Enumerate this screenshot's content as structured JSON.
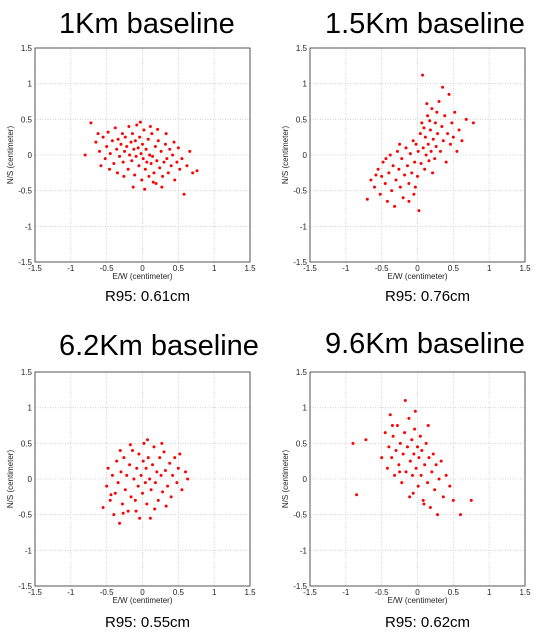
{
  "chart_data": [
    {
      "type": "scatter",
      "title": "1Km baseline",
      "caption": "R95: 0.61cm",
      "xlabel": "E/W (centimeter)",
      "ylabel": "N/S (centimeter)",
      "xlim": [
        -1.5,
        1.5
      ],
      "ylim": [
        -1.5,
        1.5
      ],
      "xticks": [
        "-1.5",
        "-1",
        "-0.5",
        "0",
        "0.5",
        "1",
        "1.5"
      ],
      "yticks": [
        "-1.5",
        "-1",
        "-0.5",
        "0",
        "0.5",
        "1",
        "1.5"
      ],
      "grid": true,
      "color": "#ff0000",
      "points": [
        [
          -0.8,
          0.0
        ],
        [
          -0.72,
          0.45
        ],
        [
          -0.65,
          0.18
        ],
        [
          -0.6,
          0.05
        ],
        [
          -0.55,
          0.25
        ],
        [
          -0.52,
          -0.05
        ],
        [
          -0.5,
          0.12
        ],
        [
          -0.48,
          0.32
        ],
        [
          -0.45,
          0.02
        ],
        [
          -0.42,
          0.2
        ],
        [
          -0.4,
          -0.12
        ],
        [
          -0.38,
          0.38
        ],
        [
          -0.36,
          0.08
        ],
        [
          -0.34,
          0.22
        ],
        [
          -0.32,
          -0.02
        ],
        [
          -0.3,
          0.15
        ],
        [
          -0.28,
          0.3
        ],
        [
          -0.27,
          -0.1
        ],
        [
          -0.25,
          0.05
        ],
        [
          -0.24,
          0.25
        ],
        [
          -0.22,
          0.12
        ],
        [
          -0.2,
          -0.2
        ],
        [
          -0.19,
          0.4
        ],
        [
          -0.18,
          0.0
        ],
        [
          -0.16,
          0.18
        ],
        [
          -0.15,
          -0.08
        ],
        [
          -0.14,
          0.3
        ],
        [
          -0.12,
          0.08
        ],
        [
          -0.11,
          -0.28
        ],
        [
          -0.1,
          0.2
        ],
        [
          -0.09,
          -0.02
        ],
        [
          -0.08,
          0.42
        ],
        [
          -0.06,
          0.1
        ],
        [
          -0.05,
          -0.15
        ],
        [
          -0.04,
          0.25
        ],
        [
          -0.02,
          0.02
        ],
        [
          -0.01,
          -0.35
        ],
        [
          0.0,
          0.15
        ],
        [
          0.01,
          -0.05
        ],
        [
          0.02,
          0.35
        ],
        [
          0.04,
          -0.2
        ],
        [
          0.05,
          0.08
        ],
        [
          0.06,
          -0.1
        ],
        [
          0.08,
          0.22
        ],
        [
          0.09,
          -0.3
        ],
        [
          0.1,
          0.0
        ],
        [
          0.12,
          -0.12
        ],
        [
          0.13,
          0.3
        ],
        [
          0.14,
          -0.02
        ],
        [
          0.16,
          -0.25
        ],
        [
          0.18,
          0.12
        ],
        [
          0.19,
          -0.4
        ],
        [
          0.2,
          -0.08
        ],
        [
          0.22,
          0.2
        ],
        [
          0.24,
          -0.18
        ],
        [
          0.26,
          0.05
        ],
        [
          0.28,
          -0.3
        ],
        [
          0.3,
          -0.1
        ],
        [
          0.32,
          0.15
        ],
        [
          0.34,
          -0.05
        ],
        [
          0.36,
          -0.25
        ],
        [
          0.38,
          0.08
        ],
        [
          0.4,
          -0.15
        ],
        [
          0.42,
          0.0
        ],
        [
          0.45,
          -0.35
        ],
        [
          0.48,
          -0.1
        ],
        [
          0.5,
          0.1
        ],
        [
          0.52,
          -0.2
        ],
        [
          0.55,
          -0.05
        ],
        [
          0.58,
          -0.55
        ],
        [
          0.62,
          -0.15
        ],
        [
          0.66,
          0.05
        ],
        [
          0.7,
          -0.25
        ],
        [
          0.76,
          -0.22
        ],
        [
          -0.58,
          -0.15
        ],
        [
          -0.46,
          -0.2
        ],
        [
          -0.35,
          -0.25
        ],
        [
          -0.26,
          -0.3
        ],
        [
          -0.13,
          -0.45
        ],
        [
          0.03,
          -0.48
        ],
        [
          0.15,
          -0.38
        ],
        [
          0.27,
          -0.45
        ],
        [
          0.33,
          0.3
        ],
        [
          0.21,
          0.36
        ],
        [
          0.11,
          0.4
        ],
        [
          -0.03,
          0.46
        ],
        [
          0.44,
          0.18
        ],
        [
          -0.62,
          0.3
        ]
      ]
    },
    {
      "type": "scatter",
      "title": "1.5Km baseline",
      "caption": "R95: 0.76cm",
      "xlabel": "E/W (centimeter)",
      "ylabel": "N/S (centimeter)",
      "xlim": [
        -1.5,
        1.5
      ],
      "ylim": [
        -1.5,
        1.5
      ],
      "xticks": [
        "-1.5",
        "-1",
        "-0.5",
        "0",
        "0.5",
        "1",
        "1.5"
      ],
      "yticks": [
        "-1.5",
        "-1",
        "-0.5",
        "0",
        "0.5",
        "1",
        "1.5"
      ],
      "grid": true,
      "color": "#ff0000",
      "points": [
        [
          -0.7,
          -0.62
        ],
        [
          -0.65,
          -0.35
        ],
        [
          -0.6,
          -0.45
        ],
        [
          -0.55,
          -0.2
        ],
        [
          -0.52,
          -0.55
        ],
        [
          -0.5,
          -0.3
        ],
        [
          -0.48,
          -0.1
        ],
        [
          -0.45,
          -0.4
        ],
        [
          -0.42,
          -0.65
        ],
        [
          -0.4,
          -0.25
        ],
        [
          -0.38,
          0.0
        ],
        [
          -0.36,
          -0.5
        ],
        [
          -0.34,
          -0.15
        ],
        [
          -0.32,
          -0.72
        ],
        [
          -0.3,
          -0.35
        ],
        [
          -0.28,
          0.05
        ],
        [
          -0.26,
          -0.2
        ],
        [
          -0.24,
          -0.45
        ],
        [
          -0.22,
          -0.05
        ],
        [
          -0.2,
          -0.6
        ],
        [
          -0.18,
          -0.28
        ],
        [
          -0.16,
          0.1
        ],
        [
          -0.14,
          -0.15
        ],
        [
          -0.12,
          -0.4
        ],
        [
          -0.1,
          0.02
        ],
        [
          -0.08,
          -0.25
        ],
        [
          -0.06,
          0.2
        ],
        [
          -0.05,
          -0.55
        ],
        [
          -0.04,
          -0.1
        ],
        [
          -0.02,
          0.15
        ],
        [
          0.0,
          -0.3
        ],
        [
          0.01,
          0.05
        ],
        [
          0.02,
          -0.78
        ],
        [
          0.04,
          0.3
        ],
        [
          0.05,
          -0.12
        ],
        [
          0.06,
          0.45
        ],
        [
          0.08,
          0.1
        ],
        [
          0.1,
          -0.2
        ],
        [
          0.11,
          0.25
        ],
        [
          0.12,
          0.0
        ],
        [
          0.14,
          0.55
        ],
        [
          0.15,
          0.15
        ],
        [
          0.16,
          -0.08
        ],
        [
          0.18,
          0.35
        ],
        [
          0.19,
          0.05
        ],
        [
          0.2,
          0.65
        ],
        [
          0.22,
          0.22
        ],
        [
          0.24,
          -0.05
        ],
        [
          0.25,
          0.45
        ],
        [
          0.26,
          0.12
        ],
        [
          0.28,
          0.3
        ],
        [
          0.3,
          0.75
        ],
        [
          0.32,
          0.05
        ],
        [
          0.34,
          0.4
        ],
        [
          0.36,
          0.2
        ],
        [
          0.38,
          0.55
        ],
        [
          0.4,
          -0.1
        ],
        [
          0.42,
          0.3
        ],
        [
          0.44,
          0.85
        ],
        [
          0.46,
          0.15
        ],
        [
          0.48,
          0.45
        ],
        [
          0.5,
          0.25
        ],
        [
          0.52,
          0.6
        ],
        [
          0.55,
          0.05
        ],
        [
          0.58,
          0.35
        ],
        [
          0.62,
          0.2
        ],
        [
          0.68,
          0.5
        ],
        [
          0.78,
          0.45
        ],
        [
          0.07,
          1.12
        ],
        [
          -0.12,
          -0.65
        ],
        [
          -0.25,
          0.15
        ],
        [
          0.13,
          0.72
        ],
        [
          -0.44,
          -0.05
        ],
        [
          0.21,
          -0.25
        ],
        [
          0.35,
          0.95
        ],
        [
          -0.58,
          -0.28
        ],
        [
          0.27,
          0.6
        ],
        [
          0.09,
          0.38
        ],
        [
          -0.03,
          -0.45
        ],
        [
          0.17,
          0.48
        ]
      ]
    },
    {
      "type": "scatter",
      "title": "6.2Km baseline",
      "caption": "R95: 0.55cm",
      "xlabel": "E/W (centimeter)",
      "ylabel": "N/S (centimeter)",
      "xlim": [
        -1.5,
        1.5
      ],
      "ylim": [
        -1.5,
        1.5
      ],
      "xticks": [
        "-1.5",
        "-1",
        "-0.5",
        "0",
        "0.5",
        "1",
        "1.5"
      ],
      "yticks": [
        "-1.5",
        "-1",
        "-0.5",
        "0",
        "0.5",
        "1",
        "1.5"
      ],
      "grid": true,
      "color": "#ff0000",
      "points": [
        [
          -0.55,
          -0.4
        ],
        [
          -0.5,
          -0.1
        ],
        [
          -0.48,
          0.15
        ],
        [
          -0.45,
          -0.3
        ],
        [
          -0.42,
          0.05
        ],
        [
          -0.4,
          -0.5
        ],
        [
          -0.38,
          -0.2
        ],
        [
          -0.36,
          0.25
        ],
        [
          -0.34,
          -0.05
        ],
        [
          -0.32,
          -0.62
        ],
        [
          -0.3,
          0.1
        ],
        [
          -0.28,
          -0.35
        ],
        [
          -0.26,
          0.3
        ],
        [
          -0.24,
          -0.15
        ],
        [
          -0.22,
          0.05
        ],
        [
          -0.2,
          -0.45
        ],
        [
          -0.18,
          0.2
        ],
        [
          -0.16,
          -0.25
        ],
        [
          -0.14,
          0.4
        ],
        [
          -0.12,
          0.0
        ],
        [
          -0.1,
          -0.3
        ],
        [
          -0.08,
          0.15
        ],
        [
          -0.06,
          -0.1
        ],
        [
          -0.05,
          0.35
        ],
        [
          -0.04,
          -0.55
        ],
        [
          -0.02,
          0.05
        ],
        [
          0.0,
          -0.2
        ],
        [
          0.01,
          0.25
        ],
        [
          0.02,
          0.5
        ],
        [
          0.04,
          -0.05
        ],
        [
          0.05,
          0.15
        ],
        [
          0.06,
          -0.35
        ],
        [
          0.08,
          0.3
        ],
        [
          0.1,
          0.0
        ],
        [
          0.12,
          -0.15
        ],
        [
          0.14,
          0.2
        ],
        [
          0.16,
          0.45
        ],
        [
          0.18,
          -0.05
        ],
        [
          0.2,
          0.1
        ],
        [
          0.22,
          -0.3
        ],
        [
          0.24,
          0.3
        ],
        [
          0.26,
          0.05
        ],
        [
          0.28,
          -0.18
        ],
        [
          0.3,
          0.38
        ],
        [
          0.32,
          0.12
        ],
        [
          0.35,
          -0.1
        ],
        [
          0.38,
          0.22
        ],
        [
          0.4,
          -0.25
        ],
        [
          0.42,
          0.05
        ],
        [
          0.45,
          0.3
        ],
        [
          0.48,
          -0.05
        ],
        [
          0.5,
          0.15
        ],
        [
          0.55,
          -0.15
        ],
        [
          0.6,
          0.1
        ],
        [
          0.63,
          0.0
        ],
        [
          0.07,
          0.55
        ],
        [
          -0.17,
          0.48
        ],
        [
          0.27,
          0.5
        ],
        [
          -0.09,
          -0.45
        ],
        [
          0.17,
          -0.42
        ],
        [
          0.33,
          -0.38
        ],
        [
          -0.27,
          -0.48
        ],
        [
          -0.44,
          -0.22
        ],
        [
          0.52,
          0.35
        ],
        [
          0.11,
          -0.55
        ],
        [
          -0.31,
          0.4
        ]
      ]
    },
    {
      "type": "scatter",
      "title": "9.6Km baseline",
      "caption": "R95: 0.62cm",
      "xlabel": "E/W (centimeter)",
      "ylabel": "N/S (centimeter)",
      "xlim": [
        -1.5,
        1.5
      ],
      "ylim": [
        -1.5,
        1.5
      ],
      "xticks": [
        "-1.5",
        "-1",
        "-0.5",
        "0",
        "0.5",
        "1",
        "1.5"
      ],
      "yticks": [
        "-1.5",
        "-1",
        "-0.5",
        "0",
        "0.5",
        "1",
        "1.5"
      ],
      "grid": true,
      "color": "#ff0000",
      "points": [
        [
          -0.9,
          0.5
        ],
        [
          -0.85,
          -0.22
        ],
        [
          -0.72,
          0.55
        ],
        [
          -0.5,
          0.3
        ],
        [
          -0.45,
          0.65
        ],
        [
          -0.42,
          0.15
        ],
        [
          -0.4,
          0.45
        ],
        [
          -0.38,
          0.9
        ],
        [
          -0.36,
          0.3
        ],
        [
          -0.34,
          0.6
        ],
        [
          -0.32,
          0.05
        ],
        [
          -0.3,
          0.4
        ],
        [
          -0.28,
          0.75
        ],
        [
          -0.26,
          0.2
        ],
        [
          -0.24,
          0.5
        ],
        [
          -0.22,
          -0.05
        ],
        [
          -0.2,
          0.35
        ],
        [
          -0.18,
          0.65
        ],
        [
          -0.16,
          0.1
        ],
        [
          -0.14,
          0.45
        ],
        [
          -0.12,
          0.85
        ],
        [
          -0.1,
          0.25
        ],
        [
          -0.08,
          0.55
        ],
        [
          -0.06,
          -0.2
        ],
        [
          -0.05,
          0.35
        ],
        [
          -0.04,
          0.7
        ],
        [
          -0.02,
          0.15
        ],
        [
          0.0,
          0.45
        ],
        [
          0.01,
          -0.1
        ],
        [
          0.02,
          0.3
        ],
        [
          0.04,
          0.6
        ],
        [
          0.05,
          0.05
        ],
        [
          0.06,
          0.4
        ],
        [
          0.08,
          -0.3
        ],
        [
          0.1,
          0.2
        ],
        [
          0.12,
          0.5
        ],
        [
          0.14,
          -0.05
        ],
        [
          0.16,
          0.3
        ],
        [
          0.18,
          -0.4
        ],
        [
          0.2,
          0.1
        ],
        [
          0.22,
          0.35
        ],
        [
          0.24,
          -0.15
        ],
        [
          0.26,
          0.2
        ],
        [
          0.28,
          -0.5
        ],
        [
          0.3,
          0.0
        ],
        [
          0.33,
          0.25
        ],
        [
          0.36,
          -0.25
        ],
        [
          0.4,
          0.05
        ],
        [
          0.45,
          -0.1
        ],
        [
          0.5,
          -0.3
        ],
        [
          0.6,
          -0.5
        ],
        [
          0.75,
          -0.3
        ],
        [
          -0.17,
          1.1
        ],
        [
          -0.03,
          0.95
        ],
        [
          -0.11,
          -0.25
        ],
        [
          0.09,
          -0.35
        ],
        [
          -0.25,
          0.1
        ],
        [
          -0.35,
          0.75
        ],
        [
          0.15,
          0.75
        ],
        [
          -0.07,
          0.05
        ]
      ]
    }
  ]
}
